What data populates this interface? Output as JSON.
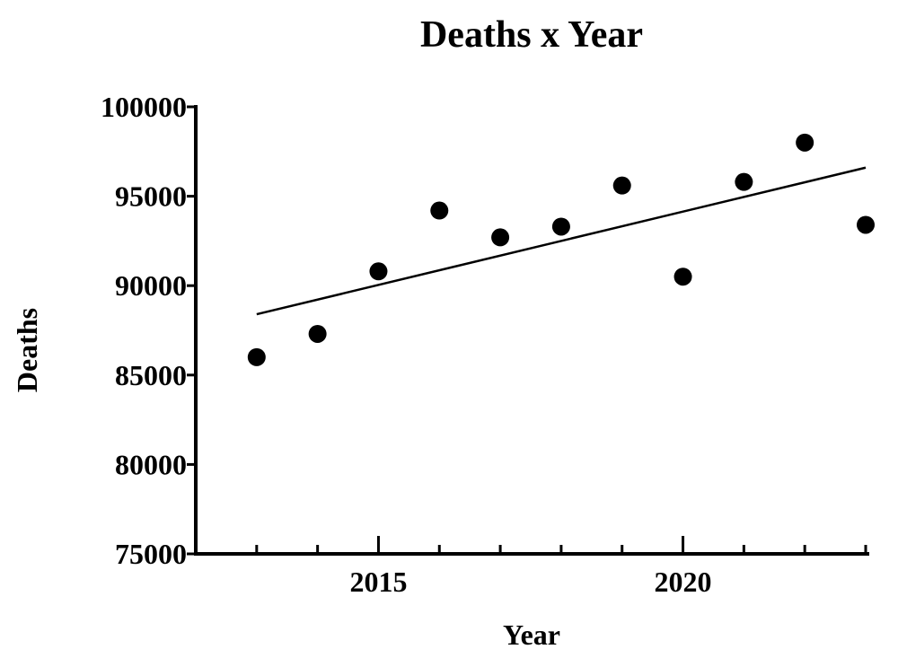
{
  "chart_data": {
    "type": "scatter",
    "title": "Deaths x Year",
    "xlabel": "Year",
    "ylabel": "Deaths",
    "xlim": [
      2012,
      2023
    ],
    "ylim": [
      75000,
      100000
    ],
    "x_ticks_labeled": [
      2015,
      2020
    ],
    "x_ticks_minor": [
      2013,
      2014,
      2016,
      2017,
      2018,
      2019,
      2021,
      2022,
      2023
    ],
    "y_ticks": [
      75000,
      80000,
      85000,
      90000,
      95000,
      100000
    ],
    "grid": false,
    "legend": "none",
    "series": [
      {
        "x": [
          2013,
          2014,
          2015,
          2016,
          2017,
          2018,
          2019,
          2020,
          2021,
          2022,
          2023
        ],
        "y": [
          86000,
          87300,
          90800,
          94200,
          92700,
          93300,
          95600,
          90500,
          95800,
          98000,
          93400
        ]
      }
    ],
    "trendline": {
      "x": [
        2013,
        2023
      ],
      "y": [
        88400,
        96600
      ]
    },
    "colors": {
      "points": "#000000",
      "line": "#000000",
      "axes": "#000000"
    }
  }
}
